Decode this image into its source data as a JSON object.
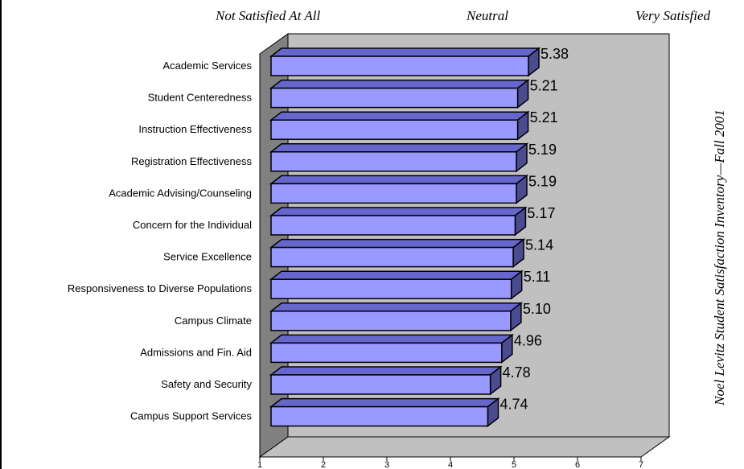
{
  "header": {
    "scale_left": "Not Satisfied At All",
    "scale_mid": "Neutral",
    "scale_right": "Very Satisfied"
  },
  "side_title": "Noel Levitz Student Satisfaction Inventory—Fall 2001",
  "colors": {
    "bar_front": "#9999ff",
    "bar_top": "#6666cc",
    "bar_side": "#4b4b8f",
    "wall": "#c0c0c0",
    "wall_left": "#808080",
    "floor": "#c0c0c0"
  },
  "chart_data": {
    "type": "bar",
    "orientation": "horizontal",
    "style": "3d",
    "categories": [
      "Academic Services",
      "Student Centeredness",
      "Instruction Effectiveness",
      "Registration Effectiveness",
      "Academic Advising/Counseling",
      "Concern for the Individual",
      "Service Excellence",
      "Responsiveness to Diverse Populations",
      "Campus Climate",
      "Admissions and Fin. Aid",
      "Safety and Security",
      "Campus Support Services"
    ],
    "values": [
      5.38,
      5.21,
      5.21,
      5.19,
      5.19,
      5.17,
      5.14,
      5.11,
      5.1,
      4.96,
      4.78,
      4.74
    ],
    "value_labels": [
      "5.38",
      "5.21",
      "5.21",
      "5.19",
      "5.19",
      "5.17",
      "5.14",
      "5.11",
      "5.10",
      "4.96",
      "4.78",
      "4.74"
    ],
    "xlim": [
      1,
      7
    ],
    "xticks": [
      "1",
      "2",
      "3",
      "4",
      "5",
      "6",
      "7"
    ],
    "grid": false,
    "legend": "none"
  }
}
